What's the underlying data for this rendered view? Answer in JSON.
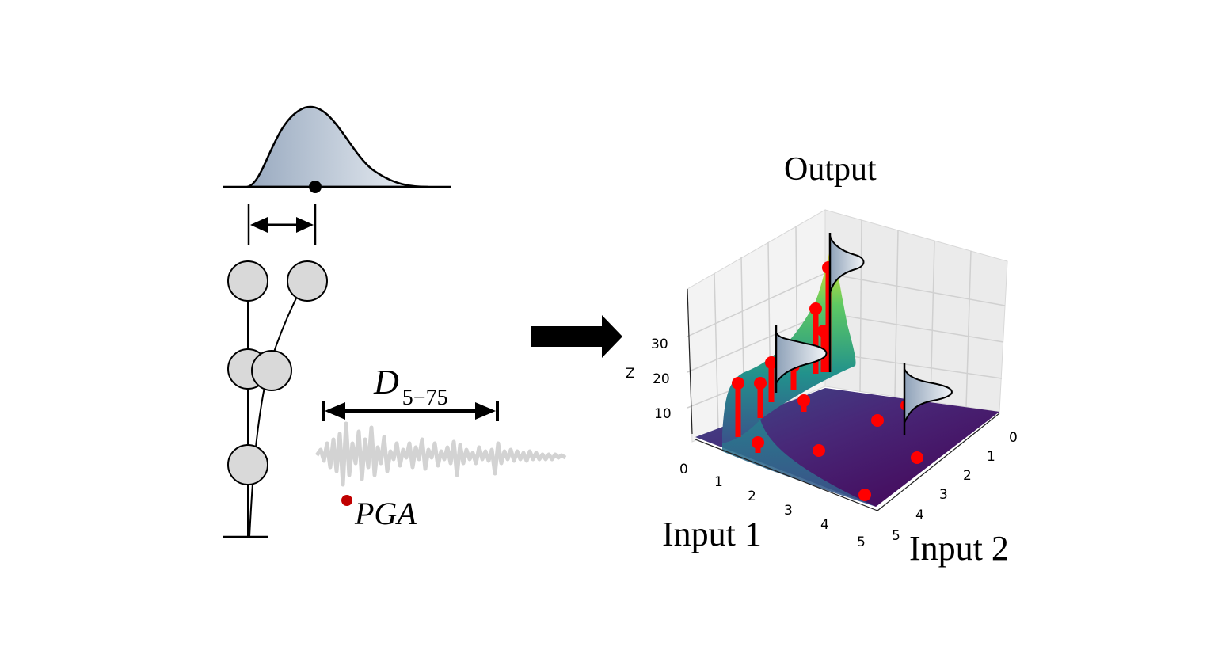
{
  "left_panel": {
    "duration_label_main": "D",
    "duration_label_sub": "5−75",
    "pga_label": "PGA"
  },
  "right_panel": {
    "output_label": "Output",
    "input1_label": "Input 1",
    "input2_label": "Input 2",
    "z_axis_label": "Z",
    "z_ticks": [
      "10",
      "20",
      "30"
    ],
    "input1_ticks": [
      "0",
      "1",
      "2",
      "3",
      "4",
      "5"
    ],
    "input2_ticks": [
      "0",
      "1",
      "2",
      "3",
      "4",
      "5"
    ]
  },
  "colors": {
    "distribution_fill": "#b9c8d8",
    "node_fill": "#d9d9d9",
    "signal_gray": "#d3d3d3",
    "pga_dot": "#c00000",
    "sample_red": "#ff0000",
    "surface_low": "#440154",
    "surface_mid": "#21918c",
    "surface_high": "#fde725"
  }
}
